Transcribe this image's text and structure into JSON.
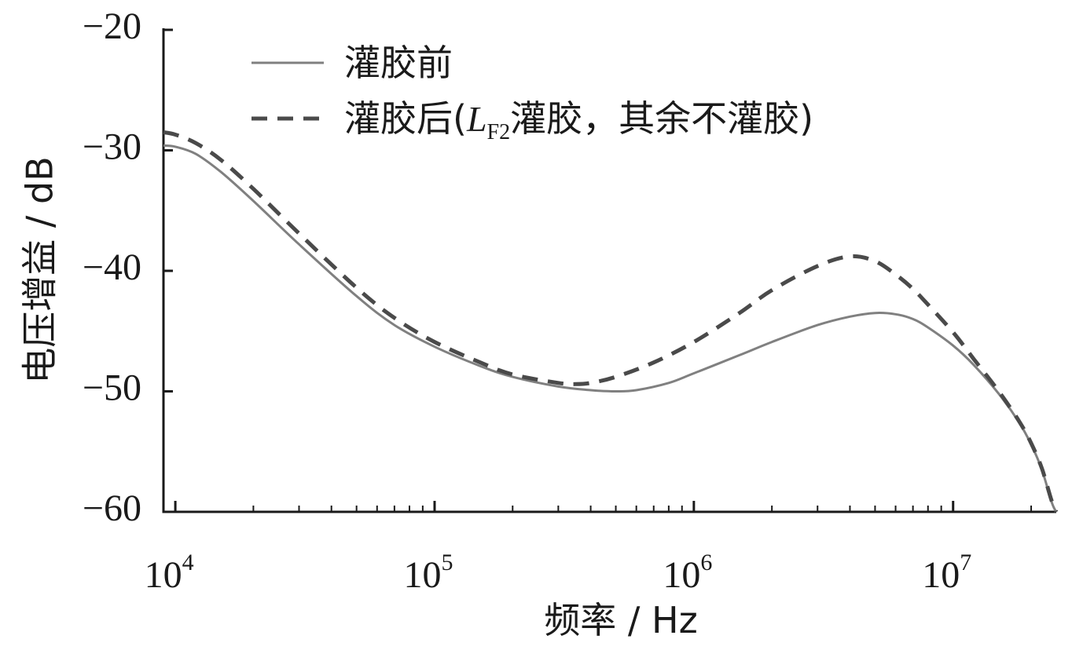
{
  "chart_data": {
    "type": "line",
    "xscale": "log",
    "xlim": [
      9000,
      25000000
    ],
    "ylim": [
      -60,
      -20
    ],
    "xlabel": "频率 / Hz",
    "ylabel": "电压增益 / dB",
    "xticks": [
      {
        "value": 10000,
        "base": "10",
        "exp": "4"
      },
      {
        "value": 100000,
        "base": "10",
        "exp": "5"
      },
      {
        "value": 1000000,
        "base": "10",
        "exp": "6"
      },
      {
        "value": 10000000,
        "base": "10",
        "exp": "7"
      }
    ],
    "yticks": [
      {
        "value": -20,
        "label": "−20"
      },
      {
        "value": -30,
        "label": "−30"
      },
      {
        "value": -40,
        "label": "−40"
      },
      {
        "value": -50,
        "label": "−50"
      },
      {
        "value": -60,
        "label": "−60"
      }
    ],
    "grid": false,
    "legend_position": "top-right",
    "series": [
      {
        "name": "灌胶前",
        "color": "#808080",
        "dash": "solid",
        "points": [
          [
            9000,
            -29.6
          ],
          [
            10000,
            -29.7
          ],
          [
            12000,
            -30.3
          ],
          [
            15000,
            -31.8
          ],
          [
            20000,
            -34.2
          ],
          [
            30000,
            -37.8
          ],
          [
            50000,
            -42.1
          ],
          [
            70000,
            -44.5
          ],
          [
            100000,
            -46.3
          ],
          [
            150000,
            -47.9
          ],
          [
            200000,
            -48.8
          ],
          [
            300000,
            -49.6
          ],
          [
            400000,
            -49.9
          ],
          [
            500000,
            -50.0
          ],
          [
            600000,
            -49.9
          ],
          [
            800000,
            -49.3
          ],
          [
            1000000,
            -48.5
          ],
          [
            1500000,
            -47.0
          ],
          [
            2000000,
            -45.9
          ],
          [
            3000000,
            -44.5
          ],
          [
            4000000,
            -43.8
          ],
          [
            5000000,
            -43.5
          ],
          [
            6000000,
            -43.6
          ],
          [
            7000000,
            -44.0
          ],
          [
            8000000,
            -44.7
          ],
          [
            10000000,
            -46.2
          ],
          [
            12000000,
            -47.8
          ],
          [
            15000000,
            -50.2
          ],
          [
            18000000,
            -52.6
          ],
          [
            20000000,
            -54.4
          ],
          [
            22000000,
            -56.5
          ],
          [
            24000000,
            -59.2
          ],
          [
            25000000,
            -60.0
          ]
        ]
      },
      {
        "name": "灌胶后(LF2灌胶，其余不灌胶)",
        "color": "#4a4a4a",
        "dash": "dashed",
        "points": [
          [
            9000,
            -28.5
          ],
          [
            10000,
            -28.7
          ],
          [
            12000,
            -29.4
          ],
          [
            15000,
            -30.8
          ],
          [
            20000,
            -33.2
          ],
          [
            30000,
            -36.9
          ],
          [
            50000,
            -41.4
          ],
          [
            70000,
            -43.9
          ],
          [
            100000,
            -45.9
          ],
          [
            150000,
            -47.6
          ],
          [
            200000,
            -48.6
          ],
          [
            300000,
            -49.3
          ],
          [
            350000,
            -49.4
          ],
          [
            400000,
            -49.3
          ],
          [
            500000,
            -48.8
          ],
          [
            700000,
            -47.6
          ],
          [
            1000000,
            -45.9
          ],
          [
            1500000,
            -43.5
          ],
          [
            2000000,
            -41.6
          ],
          [
            3000000,
            -39.6
          ],
          [
            4000000,
            -38.8
          ],
          [
            5000000,
            -39.2
          ],
          [
            6000000,
            -40.3
          ],
          [
            7000000,
            -41.5
          ],
          [
            8000000,
            -42.8
          ],
          [
            10000000,
            -45.1
          ],
          [
            12000000,
            -47.3
          ],
          [
            15000000,
            -50.0
          ],
          [
            18000000,
            -52.5
          ],
          [
            20000000,
            -54.3
          ],
          [
            22000000,
            -56.4
          ],
          [
            24000000,
            -59.1
          ],
          [
            25000000,
            -60.0
          ]
        ]
      }
    ],
    "legend": [
      {
        "label": "灌胶前"
      },
      {
        "label_pre": "灌胶后(",
        "label_italic": "L",
        "label_sub": "F2",
        "label_post": "灌胶，其余不灌胶)"
      }
    ]
  }
}
